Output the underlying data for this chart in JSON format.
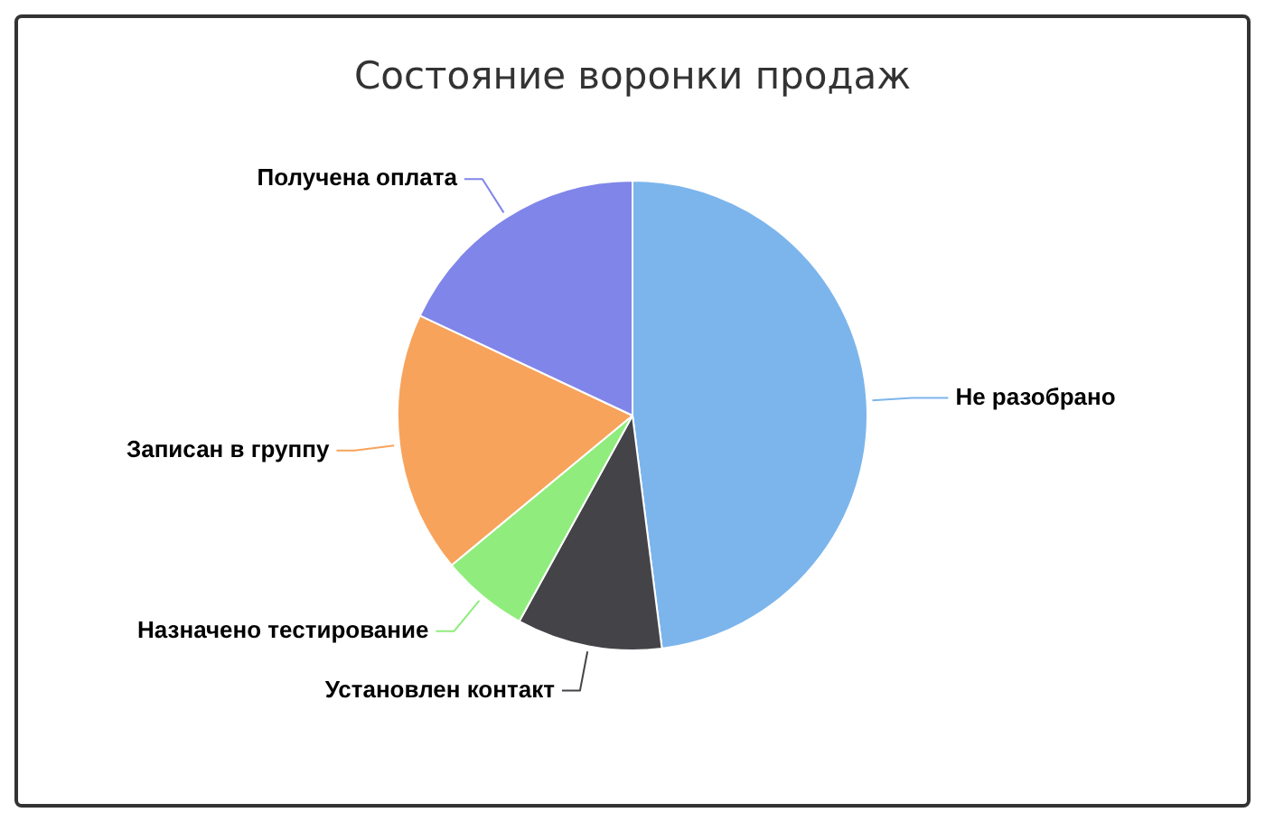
{
  "chart_data": {
    "type": "pie",
    "title": "Состояние воронки продаж",
    "categories": [
      "Не разобрано",
      "Установлен контакт",
      "Назначено тестирование",
      "Записан в группу",
      "Получена оплата"
    ],
    "values": [
      48,
      10,
      6,
      18,
      18
    ],
    "colors": [
      "#7cb5ec",
      "#434348",
      "#90ed7d",
      "#f7a35c",
      "#8085e9"
    ],
    "legend": false
  }
}
